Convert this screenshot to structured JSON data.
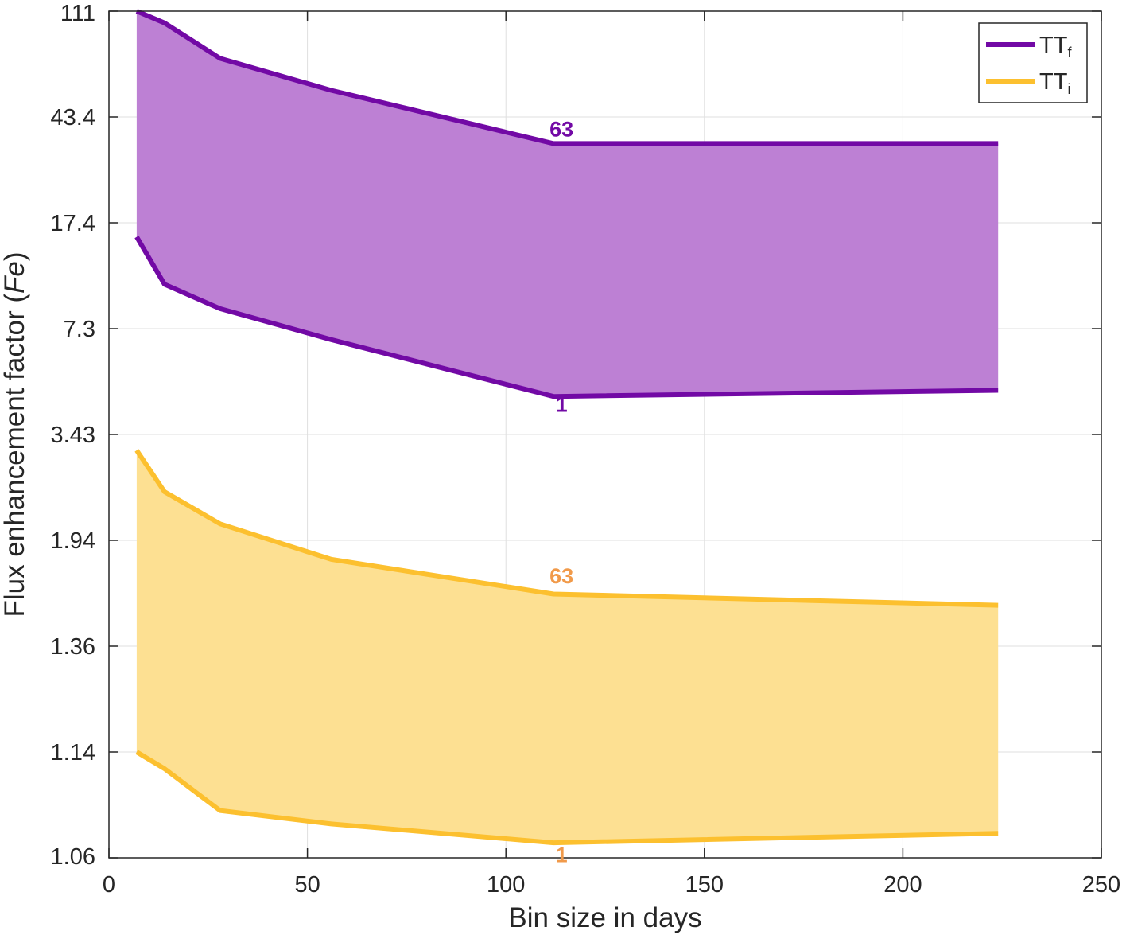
{
  "chart_data": {
    "type": "area",
    "title": "",
    "xlabel": "Bin size in days",
    "ylabel_main": "Flux  enhancement  factor  (",
    "ylabel_italic": "Fe",
    "ylabel_close": ")",
    "xlim": [
      0,
      250
    ],
    "xticks": [
      "0",
      "50",
      "100",
      "150",
      "200",
      "250"
    ],
    "yscale": "transformed",
    "yticks": [
      "1.06",
      "1.14",
      "1.36",
      "1.94",
      "3.43",
      "7.3",
      "17.4",
      "43.4",
      "111"
    ],
    "grid": true,
    "legend_position": "top-right",
    "x": [
      7,
      14,
      28,
      56,
      112,
      224
    ],
    "series": [
      {
        "name": "TT",
        "subscript": "f",
        "color": "#7209A5",
        "fill": "#BD80D4",
        "upper": [
          111,
          100,
          73,
          55,
          34.5,
          34.5
        ],
        "lower": [
          15.5,
          10.5,
          8.6,
          6.75,
          4.5,
          4.7
        ]
      },
      {
        "name": "TT",
        "subscript": "i",
        "color": "#FCC02F",
        "fill": "#FDE092",
        "upper": [
          3.15,
          2.52,
          2.12,
          1.82,
          1.62,
          1.56
        ],
        "lower": [
          1.14,
          1.127,
          1.095,
          1.085,
          1.071,
          1.078
        ]
      }
    ],
    "annotations": [
      {
        "text": "63",
        "x": 114,
        "y": 39,
        "color": "#7209A5"
      },
      {
        "text": "1",
        "x": 114,
        "y": 4.25,
        "color": "#7209A5"
      },
      {
        "text": "63",
        "x": 114,
        "y": 1.72,
        "color": "#F19A4A"
      },
      {
        "text": "1",
        "x": 114,
        "y": 1.062,
        "color": "#F19A4A"
      }
    ]
  }
}
